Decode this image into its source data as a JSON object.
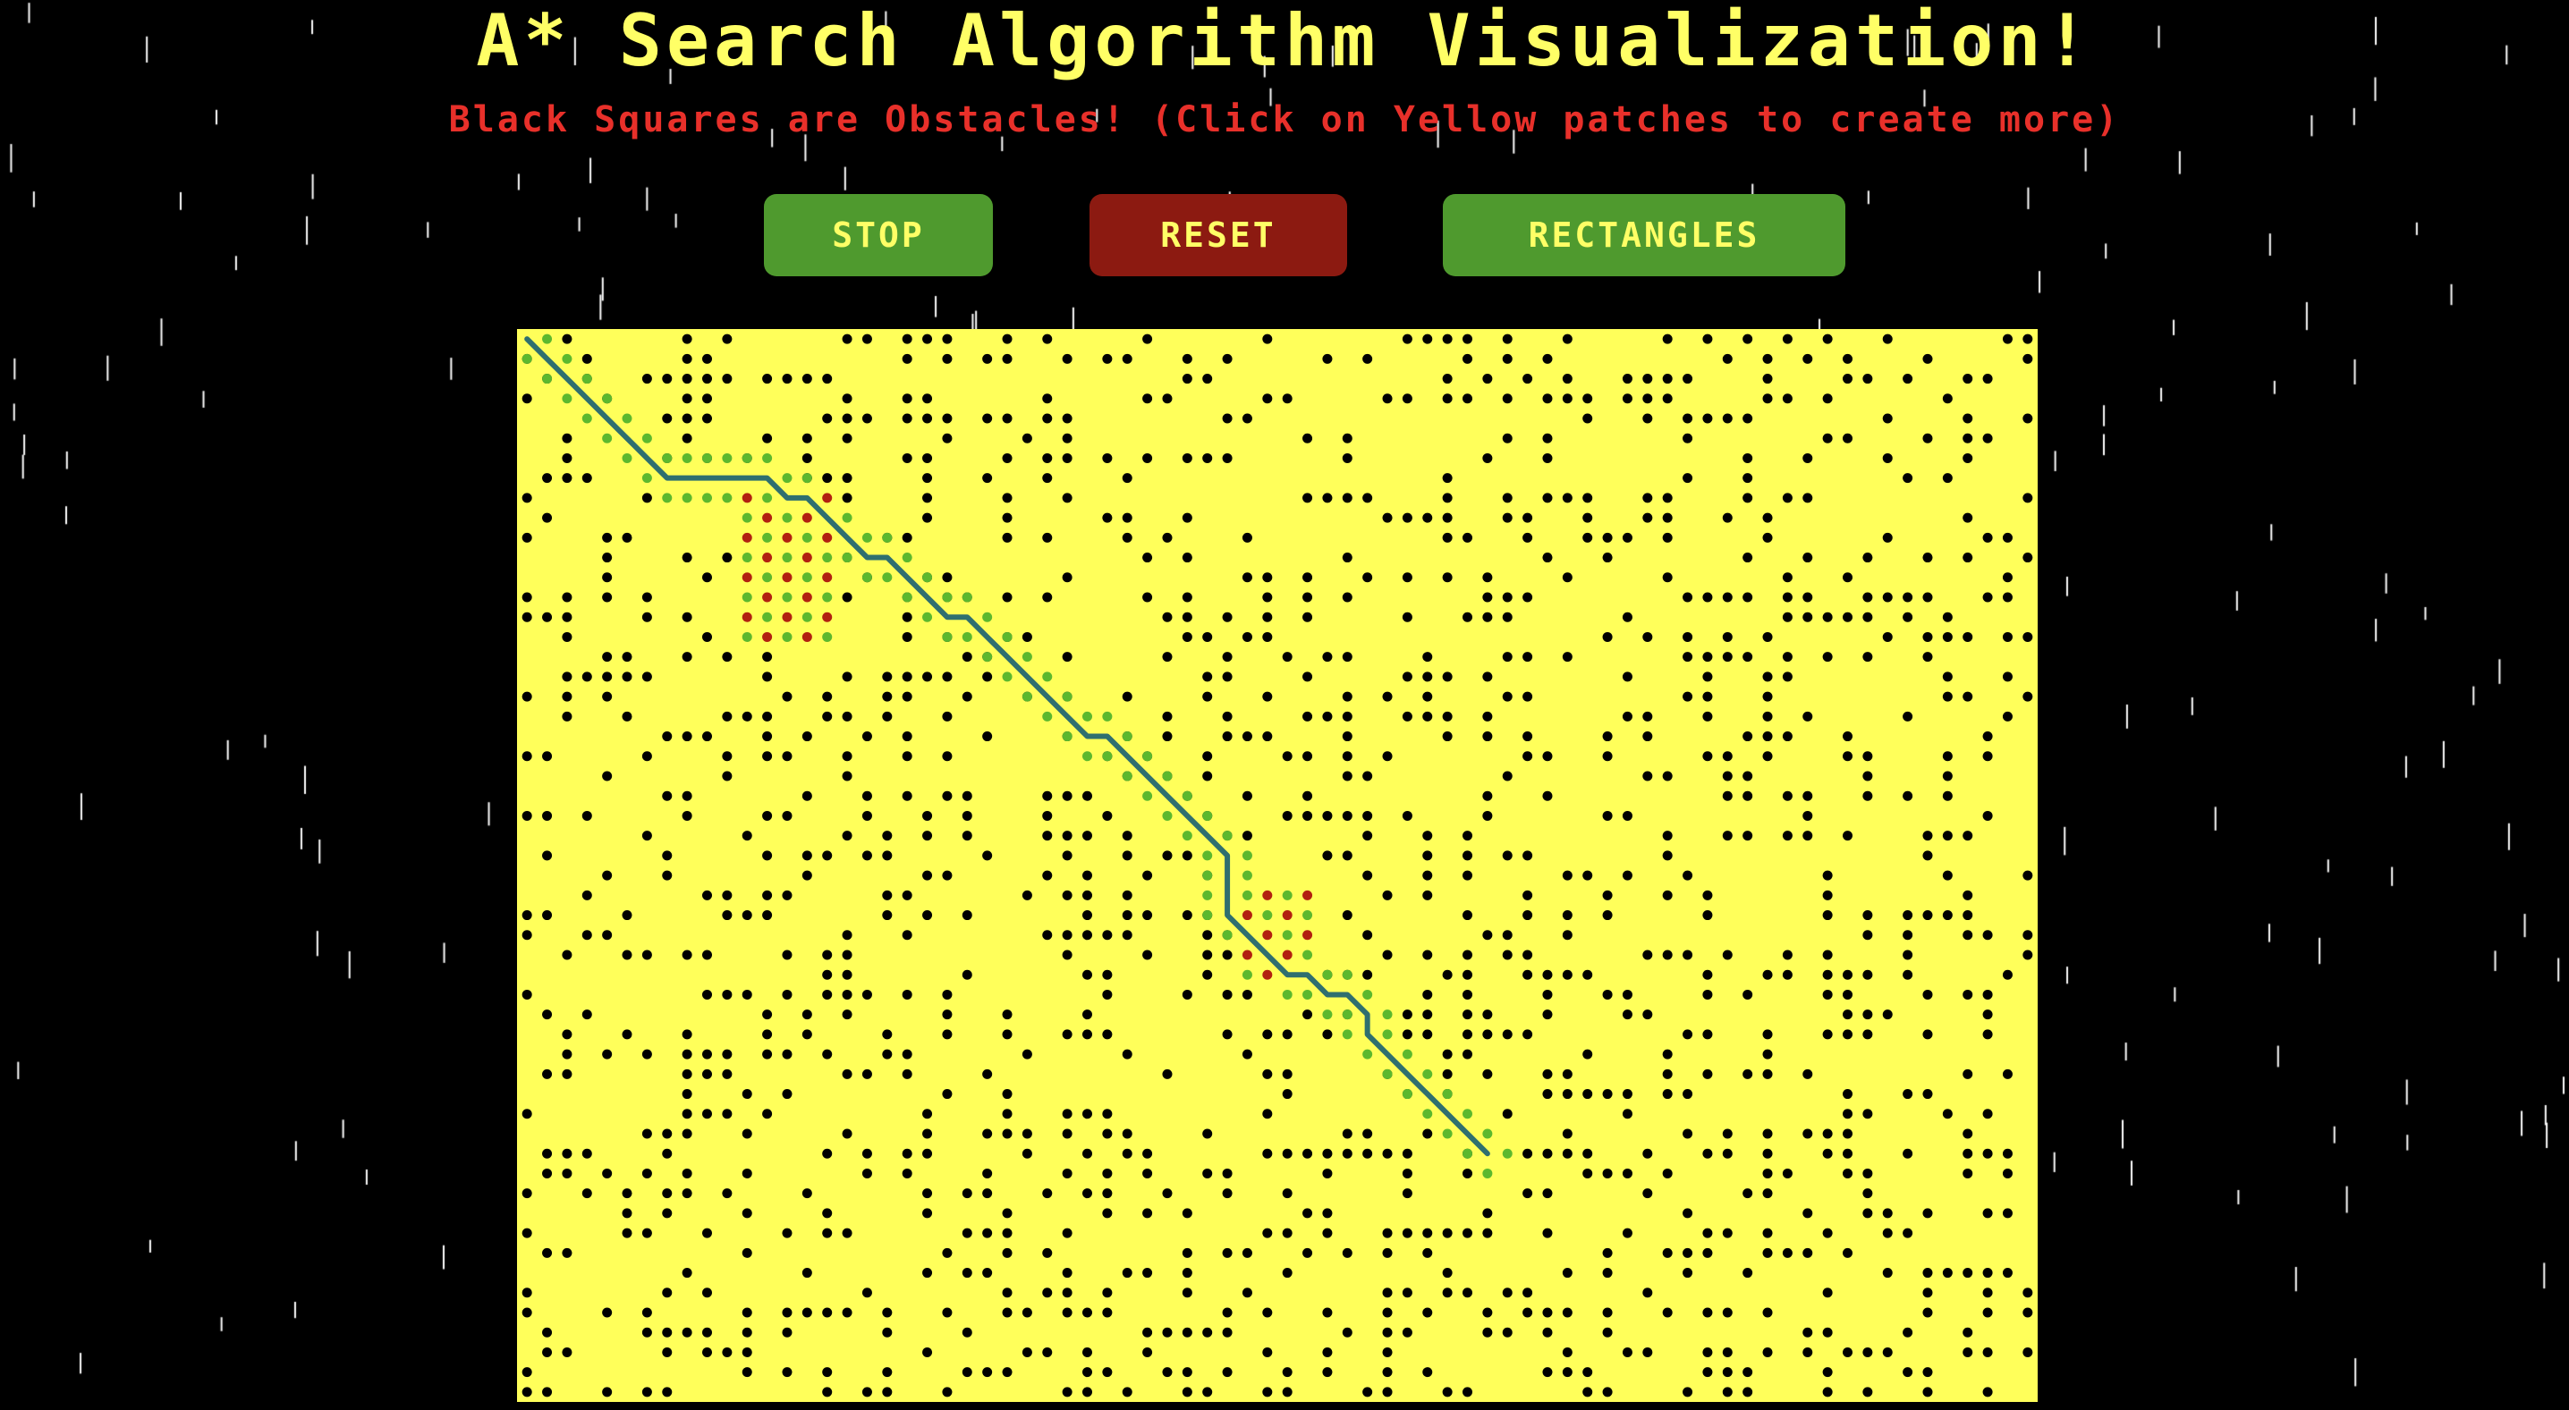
{
  "header": {
    "title": "A* Search Algorithm Visualization!",
    "subtitle": "Black Squares are Obstacles! (Click on Yellow patches to create more)"
  },
  "controls": {
    "stop_label": "STOP",
    "reset_label": "RESET",
    "rectangles_label": "RECTANGLES"
  },
  "grid": {
    "columns": 76,
    "rows": 54,
    "obstacle_density": 0.3,
    "path_cells": [
      [
        0,
        0
      ],
      [
        1,
        1
      ],
      [
        2,
        2
      ],
      [
        3,
        3
      ],
      [
        4,
        4
      ],
      [
        5,
        5
      ],
      [
        6,
        6
      ],
      [
        7,
        7
      ],
      [
        8,
        7
      ],
      [
        9,
        7
      ],
      [
        10,
        7
      ],
      [
        11,
        7
      ],
      [
        12,
        7
      ],
      [
        13,
        8
      ],
      [
        14,
        8
      ],
      [
        15,
        9
      ],
      [
        16,
        10
      ],
      [
        17,
        11
      ],
      [
        18,
        11
      ],
      [
        19,
        12
      ],
      [
        20,
        13
      ],
      [
        21,
        14
      ],
      [
        22,
        14
      ],
      [
        23,
        15
      ],
      [
        24,
        16
      ],
      [
        25,
        17
      ],
      [
        26,
        18
      ],
      [
        27,
        19
      ],
      [
        28,
        20
      ],
      [
        29,
        20
      ],
      [
        30,
        21
      ],
      [
        31,
        22
      ],
      [
        32,
        23
      ],
      [
        33,
        24
      ],
      [
        34,
        25
      ],
      [
        35,
        26
      ],
      [
        35,
        27
      ],
      [
        35,
        28
      ],
      [
        35,
        29
      ],
      [
        36,
        30
      ],
      [
        37,
        31
      ],
      [
        38,
        32
      ],
      [
        39,
        32
      ],
      [
        40,
        33
      ],
      [
        41,
        33
      ],
      [
        42,
        34
      ],
      [
        42,
        35
      ],
      [
        43,
        36
      ],
      [
        44,
        37
      ],
      [
        45,
        38
      ],
      [
        46,
        39
      ],
      [
        47,
        40
      ],
      [
        48,
        41
      ]
    ],
    "closed_regions": [
      [
        11,
        8,
        15,
        15
      ],
      [
        36,
        28,
        39,
        32
      ]
    ],
    "colors": {
      "background": "#ffff5a",
      "obstacle": "#000000",
      "open": "#5cb82e",
      "closed": "#b22010",
      "path": "#2f6f6f"
    }
  }
}
